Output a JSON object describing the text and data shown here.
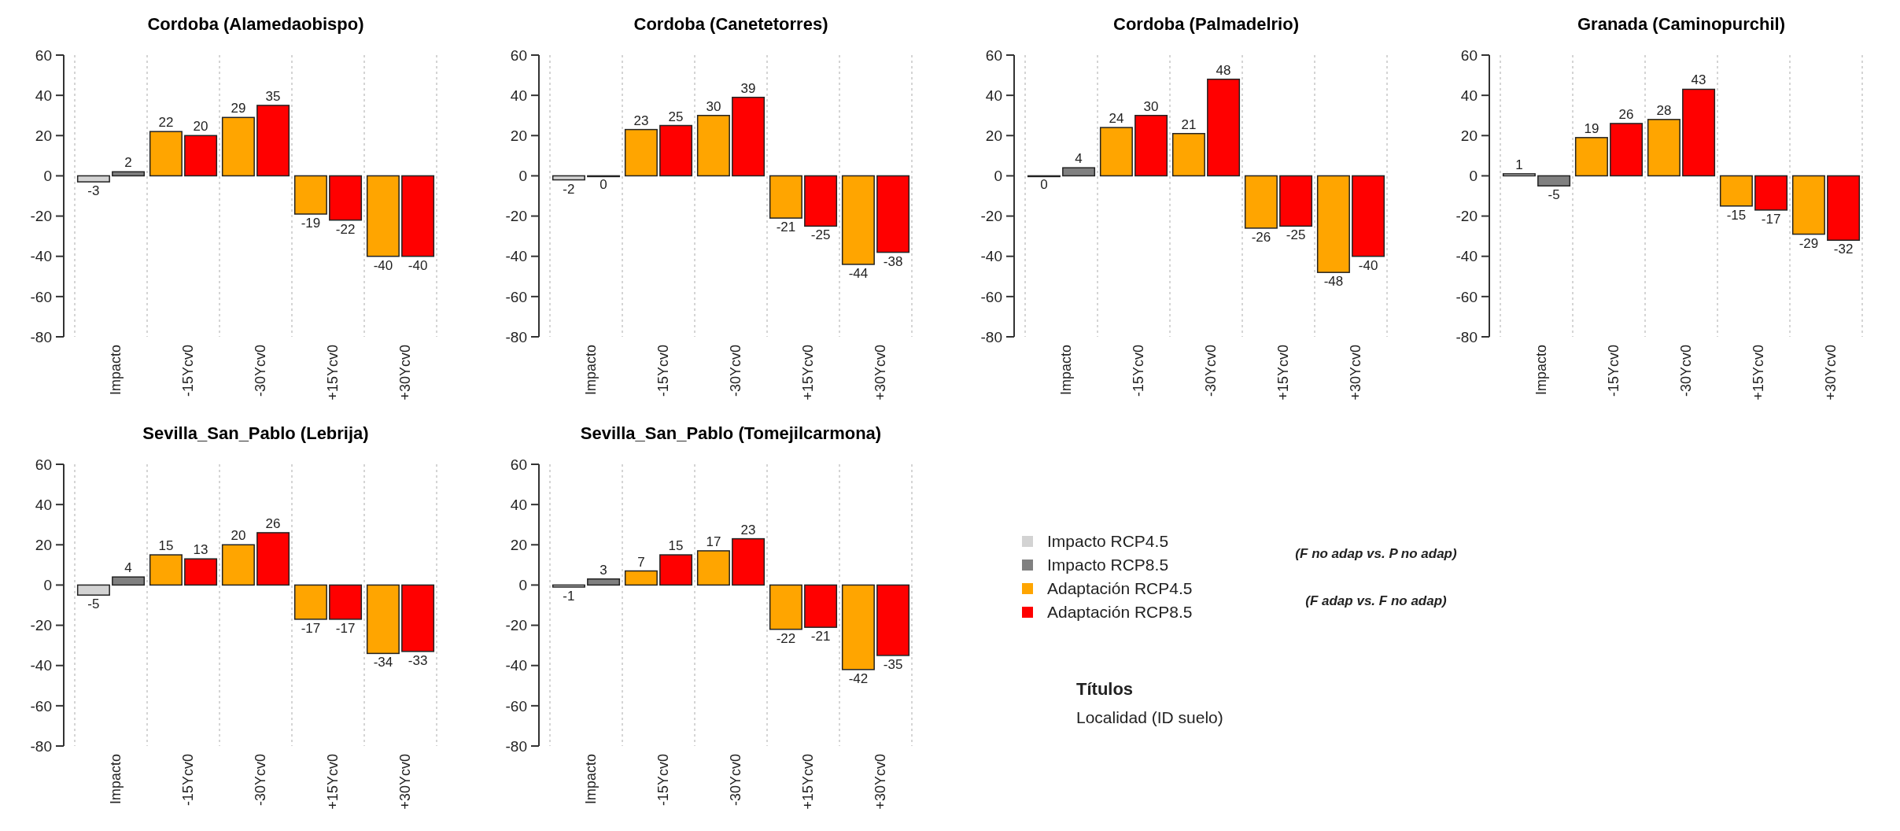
{
  "chart_data": [
    {
      "type": "bar",
      "title": "Cordoba (Alamedaobispo)",
      "categories": [
        "Impacto",
        "-15Ycv0",
        "-30Ycv0",
        "+15Ycv0",
        "+30Ycv0"
      ],
      "ylim": [
        -80,
        60
      ],
      "yticks": [
        -80,
        -60,
        -40,
        -20,
        0,
        20,
        40,
        60
      ],
      "grid": "x",
      "data_labels": true,
      "series": [
        {
          "color": "#d3d3d3",
          "values": [
            -3,
            null,
            null,
            null,
            null
          ]
        },
        {
          "color": "#808080",
          "values": [
            2,
            null,
            null,
            null,
            null
          ]
        },
        {
          "color": "#ffa500",
          "values": [
            null,
            22,
            29,
            -19,
            -40
          ]
        },
        {
          "color": "#ff0000",
          "values": [
            null,
            20,
            35,
            -22,
            -40
          ]
        }
      ]
    },
    {
      "type": "bar",
      "title": "Cordoba (Canetetorres)",
      "categories": [
        "Impacto",
        "-15Ycv0",
        "-30Ycv0",
        "+15Ycv0",
        "+30Ycv0"
      ],
      "ylim": [
        -80,
        60
      ],
      "yticks": [
        -80,
        -60,
        -40,
        -20,
        0,
        20,
        40,
        60
      ],
      "grid": "x",
      "data_labels": true,
      "series": [
        {
          "color": "#d3d3d3",
          "values": [
            -2,
            null,
            null,
            null,
            null
          ]
        },
        {
          "color": "#808080",
          "values": [
            0,
            null,
            null,
            null,
            null
          ]
        },
        {
          "color": "#ffa500",
          "values": [
            null,
            23,
            30,
            -21,
            -44
          ]
        },
        {
          "color": "#ff0000",
          "values": [
            null,
            25,
            39,
            -25,
            -38
          ]
        }
      ]
    },
    {
      "type": "bar",
      "title": "Cordoba (Palmadelrio)",
      "categories": [
        "Impacto",
        "-15Ycv0",
        "-30Ycv0",
        "+15Ycv0",
        "+30Ycv0"
      ],
      "ylim": [
        -80,
        60
      ],
      "yticks": [
        -80,
        -60,
        -40,
        -20,
        0,
        20,
        40,
        60
      ],
      "grid": "x",
      "data_labels": true,
      "series": [
        {
          "color": "#d3d3d3",
          "values": [
            0,
            null,
            null,
            null,
            null
          ]
        },
        {
          "color": "#808080",
          "values": [
            4,
            null,
            null,
            null,
            null
          ]
        },
        {
          "color": "#ffa500",
          "values": [
            null,
            24,
            21,
            -26,
            -48
          ]
        },
        {
          "color": "#ff0000",
          "values": [
            null,
            30,
            48,
            -25,
            -40
          ]
        }
      ]
    },
    {
      "type": "bar",
      "title": "Granada (Caminopurchil)",
      "categories": [
        "Impacto",
        "-15Ycv0",
        "-30Ycv0",
        "+15Ycv0",
        "+30Ycv0"
      ],
      "ylim": [
        -80,
        60
      ],
      "yticks": [
        -80,
        -60,
        -40,
        -20,
        0,
        20,
        40,
        60
      ],
      "grid": "x",
      "data_labels": true,
      "series": [
        {
          "color": "#d3d3d3",
          "values": [
            1,
            null,
            null,
            null,
            null
          ]
        },
        {
          "color": "#808080",
          "values": [
            -5,
            null,
            null,
            null,
            null
          ]
        },
        {
          "color": "#ffa500",
          "values": [
            null,
            19,
            28,
            -15,
            -29
          ]
        },
        {
          "color": "#ff0000",
          "values": [
            null,
            26,
            43,
            -17,
            -32
          ]
        }
      ]
    },
    {
      "type": "bar",
      "title": "Sevilla_San_Pablo (Lebrija)",
      "categories": [
        "Impacto",
        "-15Ycv0",
        "-30Ycv0",
        "+15Ycv0",
        "+30Ycv0"
      ],
      "ylim": [
        -80,
        60
      ],
      "yticks": [
        -80,
        -60,
        -40,
        -20,
        0,
        20,
        40,
        60
      ],
      "grid": "x",
      "data_labels": true,
      "series": [
        {
          "color": "#d3d3d3",
          "values": [
            -5,
            null,
            null,
            null,
            null
          ]
        },
        {
          "color": "#808080",
          "values": [
            4,
            null,
            null,
            null,
            null
          ]
        },
        {
          "color": "#ffa500",
          "values": [
            null,
            15,
            20,
            -17,
            -34
          ]
        },
        {
          "color": "#ff0000",
          "values": [
            null,
            13,
            26,
            -17,
            -33
          ]
        }
      ]
    },
    {
      "type": "bar",
      "title": "Sevilla_San_Pablo (Tomejilcarmona)",
      "categories": [
        "Impacto",
        "-15Ycv0",
        "-30Ycv0",
        "+15Ycv0",
        "+30Ycv0"
      ],
      "ylim": [
        -80,
        60
      ],
      "yticks": [
        -80,
        -60,
        -40,
        -20,
        0,
        20,
        40,
        60
      ],
      "grid": "x",
      "data_labels": true,
      "legend": "right",
      "annotations": [
        "(F no adap vs. P no adap)",
        "(F adap vs. F no adap)"
      ],
      "series": [
        {
          "name": "Impacto RCP4.5",
          "color": "#d3d3d3",
          "values": [
            -1,
            null,
            null,
            null,
            null
          ]
        },
        {
          "name": "Impacto RCP8.5",
          "color": "#808080",
          "values": [
            3,
            null,
            null,
            null,
            null
          ]
        },
        {
          "name": "Adaptación RCP4.5",
          "color": "#ffa500",
          "values": [
            null,
            7,
            17,
            -22,
            -42
          ]
        },
        {
          "name": "Adaptación RCP8.5",
          "color": "#ff0000",
          "values": [
            null,
            15,
            23,
            -21,
            -35
          ]
        }
      ]
    },
    {
      "type": "other",
      "title": "Títulos",
      "annotations": [
        "Localidad (ID suelo)"
      ]
    }
  ]
}
